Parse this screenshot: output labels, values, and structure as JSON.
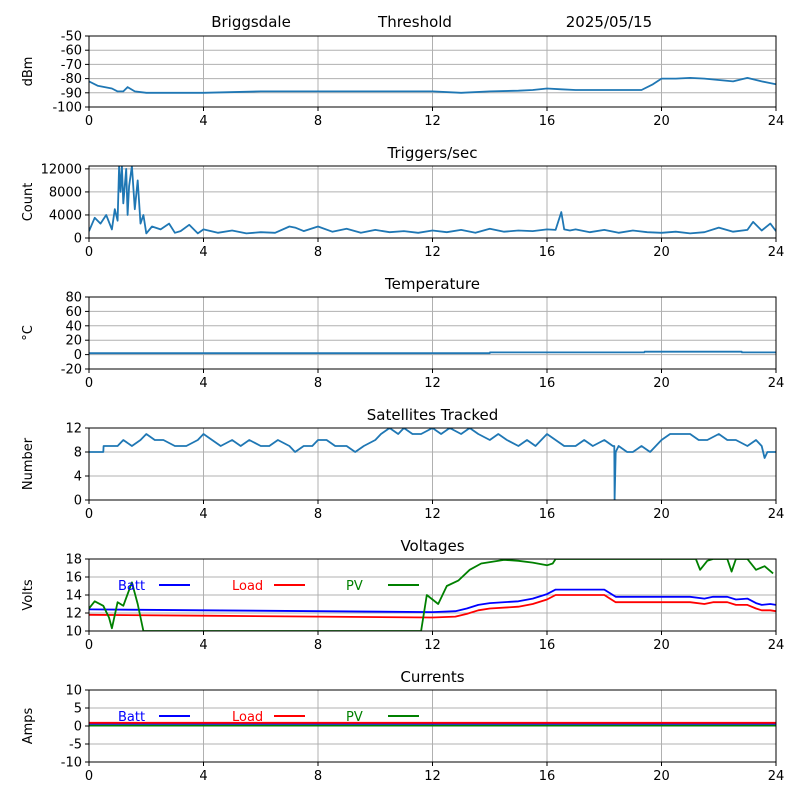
{
  "header": {
    "station": "Briggsdale",
    "label": "Threshold",
    "date": "2025/05/15"
  },
  "colors": {
    "default_series": "#1f77b4",
    "batt": "#0000ff",
    "load": "#ff0000",
    "pv": "#008000",
    "grid": "#b0b0b0"
  },
  "chart_data": [
    {
      "id": "threshold",
      "type": "line",
      "title": "",
      "xlabel": "",
      "ylabel": "dBm",
      "xlim": [
        0,
        24
      ],
      "ylim": [
        -100,
        -50
      ],
      "xticks": [
        0,
        4,
        8,
        12,
        16,
        20,
        24
      ],
      "yticks": [
        -100,
        -90,
        -80,
        -70,
        -60,
        -50
      ],
      "grid": true,
      "series": [
        {
          "color": "#1f77b4",
          "x": [
            0,
            0.3,
            0.8,
            1.0,
            1.2,
            1.35,
            1.6,
            2.0,
            3.0,
            4.0,
            6.0,
            8.0,
            10.0,
            12.0,
            13.0,
            14.0,
            15.0,
            15.5,
            16.0,
            16.5,
            17.0,
            18.0,
            19.0,
            19.3,
            19.7,
            20.0,
            20.5,
            21.0,
            21.5,
            22.0,
            22.5,
            23.0,
            23.5,
            24.0
          ],
          "y": [
            -82,
            -85,
            -87,
            -89,
            -89,
            -86,
            -89,
            -90,
            -90,
            -90,
            -89,
            -89,
            -89,
            -89,
            -90,
            -89,
            -88.5,
            -88,
            -87,
            -87.5,
            -88,
            -88,
            -88,
            -88,
            -84,
            -80,
            -80,
            -79.5,
            -80,
            -81,
            -82,
            -79.5,
            -82,
            -84
          ]
        }
      ]
    },
    {
      "id": "triggers",
      "type": "line",
      "title": "Triggers/sec",
      "xlabel": "",
      "ylabel": "Count",
      "xlim": [
        0,
        24
      ],
      "ylim": [
        0,
        12500
      ],
      "xticks": [
        0,
        4,
        8,
        12,
        16,
        20,
        24
      ],
      "yticks": [
        0,
        4000,
        8000,
        12000
      ],
      "grid": true,
      "series": [
        {
          "color": "#1f77b4",
          "x": [
            0,
            0.2,
            0.4,
            0.6,
            0.8,
            0.9,
            1.0,
            1.05,
            1.1,
            1.15,
            1.2,
            1.3,
            1.35,
            1.4,
            1.5,
            1.6,
            1.7,
            1.8,
            1.9,
            2.0,
            2.2,
            2.5,
            2.8,
            3.0,
            3.2,
            3.5,
            3.8,
            4.0,
            4.5,
            5.0,
            5.5,
            6.0,
            6.5,
            7.0,
            7.2,
            7.5,
            8.0,
            8.5,
            9.0,
            9.5,
            10.0,
            10.5,
            11.0,
            11.5,
            12.0,
            12.5,
            13.0,
            13.5,
            14.0,
            14.5,
            15.0,
            15.5,
            16.0,
            16.3,
            16.5,
            16.6,
            16.8,
            17.0,
            17.5,
            18.0,
            18.5,
            19.0,
            19.5,
            20.0,
            20.5,
            21.0,
            21.5,
            22.0,
            22.5,
            23.0,
            23.2,
            23.5,
            23.8,
            24.0
          ],
          "y": [
            1200,
            3500,
            2500,
            4000,
            1500,
            5000,
            3000,
            12500,
            8000,
            12500,
            6000,
            12000,
            4000,
            9000,
            12500,
            5000,
            10000,
            2500,
            4000,
            800,
            2000,
            1500,
            2500,
            900,
            1200,
            2300,
            800,
            1500,
            900,
            1300,
            800,
            1000,
            900,
            2000,
            1800,
            1200,
            2000,
            1100,
            1600,
            900,
            1400,
            1000,
            1200,
            900,
            1300,
            1000,
            1400,
            900,
            1600,
            1100,
            1300,
            1200,
            1500,
            1400,
            4500,
            1500,
            1300,
            1500,
            1000,
            1400,
            900,
            1300,
            1000,
            900,
            1100,
            800,
            1000,
            1800,
            1100,
            1400,
            2800,
            1300,
            2500,
            1200
          ]
        }
      ]
    },
    {
      "id": "temperature",
      "type": "line",
      "title": "Temperature",
      "xlabel": "",
      "ylabel": "°C",
      "xlim": [
        0,
        24
      ],
      "ylim": [
        -20,
        80
      ],
      "xticks": [
        0,
        4,
        8,
        12,
        16,
        20,
        24
      ],
      "yticks": [
        -20,
        0,
        20,
        40,
        60,
        80
      ],
      "grid": true,
      "series": [
        {
          "color": "#1f77b4",
          "x": [
            0,
            14.0,
            14.01,
            19.4,
            19.41,
            22.8,
            22.81,
            24
          ],
          "y": [
            2,
            2,
            3,
            3,
            4,
            4,
            3,
            3
          ]
        }
      ]
    },
    {
      "id": "satellites",
      "type": "line",
      "title": "Satellites Tracked",
      "xlabel": "",
      "ylabel": "Number",
      "xlim": [
        0,
        24
      ],
      "ylim": [
        0,
        12
      ],
      "xticks": [
        0,
        4,
        8,
        12,
        16,
        20,
        24
      ],
      "yticks": [
        0,
        4,
        8,
        12
      ],
      "grid": true,
      "series": [
        {
          "color": "#1f77b4",
          "x": [
            0,
            0.5,
            0.51,
            1.0,
            1.2,
            1.5,
            1.8,
            2.0,
            2.3,
            2.6,
            3.0,
            3.4,
            3.8,
            4.0,
            4.3,
            4.6,
            5.0,
            5.3,
            5.6,
            6.0,
            6.3,
            6.6,
            7.0,
            7.2,
            7.5,
            7.8,
            8.0,
            8.3,
            8.6,
            9.0,
            9.3,
            9.6,
            10.0,
            10.2,
            10.5,
            10.8,
            11.0,
            11.3,
            11.6,
            12.0,
            12.3,
            12.6,
            13.0,
            13.3,
            13.6,
            14.0,
            14.3,
            14.6,
            15.0,
            15.3,
            15.6,
            16.0,
            16.3,
            16.6,
            17.0,
            17.3,
            17.6,
            18.0,
            18.3,
            18.35,
            18.36,
            18.4,
            18.5,
            18.8,
            19.0,
            19.3,
            19.6,
            20.0,
            20.3,
            20.6,
            21.0,
            21.3,
            21.6,
            22.0,
            22.3,
            22.6,
            23.0,
            23.3,
            23.5,
            23.6,
            23.7,
            24.0
          ],
          "y": [
            8,
            8,
            9,
            9,
            10,
            9,
            10,
            11,
            10,
            10,
            9,
            9,
            10,
            11,
            10,
            9,
            10,
            9,
            10,
            9,
            9,
            10,
            9,
            8,
            9,
            9,
            10,
            10,
            9,
            9,
            8,
            9,
            10,
            11,
            12,
            11,
            12,
            11,
            11,
            12,
            11,
            12,
            11,
            12,
            11,
            10,
            11,
            10,
            9,
            10,
            9,
            11,
            10,
            9,
            9,
            10,
            9,
            10,
            9,
            9,
            0,
            8,
            9,
            8,
            8,
            9,
            8,
            10,
            11,
            11,
            11,
            10,
            10,
            11,
            10,
            10,
            9,
            10,
            9,
            7,
            8,
            8
          ]
        }
      ]
    },
    {
      "id": "voltages",
      "type": "line",
      "title": "Voltages",
      "xlabel": "",
      "ylabel": "Volts",
      "xlim": [
        0,
        24
      ],
      "ylim": [
        10,
        18
      ],
      "xticks": [
        0,
        4,
        8,
        12,
        16,
        20,
        24
      ],
      "yticks": [
        10,
        12,
        14,
        16,
        18
      ],
      "grid": true,
      "legend": [
        "Batt",
        "Load",
        "PV"
      ],
      "series": [
        {
          "name": "Batt",
          "color": "#0000ff",
          "x": [
            0,
            4,
            8,
            12,
            12.8,
            13.2,
            13.6,
            14,
            15,
            15.5,
            16,
            16.3,
            17,
            18,
            18.4,
            19,
            20,
            21,
            21.5,
            21.8,
            22.3,
            22.6,
            23,
            23.3,
            23.5,
            23.8,
            24
          ],
          "y": [
            12.4,
            12.3,
            12.2,
            12.1,
            12.2,
            12.5,
            12.9,
            13.1,
            13.3,
            13.6,
            14.1,
            14.6,
            14.6,
            14.6,
            13.8,
            13.8,
            13.8,
            13.8,
            13.6,
            13.8,
            13.8,
            13.5,
            13.6,
            13.1,
            12.9,
            13.0,
            12.9
          ]
        },
        {
          "name": "Load",
          "color": "#ff0000",
          "x": [
            0,
            4,
            8,
            12,
            12.8,
            13.2,
            13.6,
            14,
            15,
            15.5,
            16,
            16.3,
            17,
            18,
            18.4,
            19,
            20,
            21,
            21.5,
            21.8,
            22.3,
            22.6,
            23,
            23.3,
            23.5,
            23.8,
            24
          ],
          "y": [
            11.8,
            11.7,
            11.6,
            11.5,
            11.6,
            11.9,
            12.3,
            12.5,
            12.7,
            13.0,
            13.5,
            14.0,
            14.0,
            14.0,
            13.2,
            13.2,
            13.2,
            13.2,
            13.0,
            13.2,
            13.2,
            12.9,
            12.9,
            12.5,
            12.3,
            12.3,
            12.2
          ]
        },
        {
          "name": "PV",
          "color": "#008000",
          "x": [
            0,
            0.2,
            0.5,
            0.7,
            0.8,
            1.0,
            1.2,
            1.5,
            1.7,
            1.9,
            11.6,
            11.8,
            12.0,
            12.2,
            12.5,
            12.9,
            13.3,
            13.7,
            14.5,
            15.0,
            15.5,
            16.0,
            16.2,
            16.3,
            21.2,
            21.35,
            21.6,
            21.8,
            22.0,
            22.3,
            22.45,
            22.6,
            22.8,
            23.0,
            23.3,
            23.6,
            23.9
          ],
          "y": [
            12.5,
            13.3,
            12.8,
            11.5,
            10.3,
            13.2,
            12.8,
            15.4,
            13.0,
            10.0,
            10.0,
            14.0,
            13.5,
            13.0,
            15.0,
            15.6,
            16.8,
            17.5,
            17.9,
            17.8,
            17.6,
            17.3,
            17.5,
            18.0,
            18.0,
            16.8,
            17.8,
            18.0,
            18.0,
            18.0,
            16.6,
            18.0,
            18.0,
            18.0,
            16.8,
            17.2,
            16.4
          ]
        }
      ]
    },
    {
      "id": "currents",
      "type": "line",
      "title": "Currents",
      "xlabel": "",
      "ylabel": "Amps",
      "xlim": [
        0,
        24
      ],
      "ylim": [
        -10,
        10
      ],
      "xticks": [
        0,
        4,
        8,
        12,
        16,
        20,
        24
      ],
      "yticks": [
        -10,
        -5,
        0,
        5,
        10
      ],
      "grid": true,
      "legend": [
        "Batt",
        "Load",
        "PV"
      ],
      "series": [
        {
          "name": "Batt",
          "color": "#0000ff",
          "x": [
            0,
            24
          ],
          "y": [
            0.6,
            0.6
          ]
        },
        {
          "name": "Load",
          "color": "#ff0000",
          "x": [
            0,
            24
          ],
          "y": [
            0.9,
            0.9
          ]
        },
        {
          "name": "PV",
          "color": "#008000",
          "x": [
            0,
            24
          ],
          "y": [
            0.1,
            0.1
          ]
        }
      ]
    }
  ]
}
